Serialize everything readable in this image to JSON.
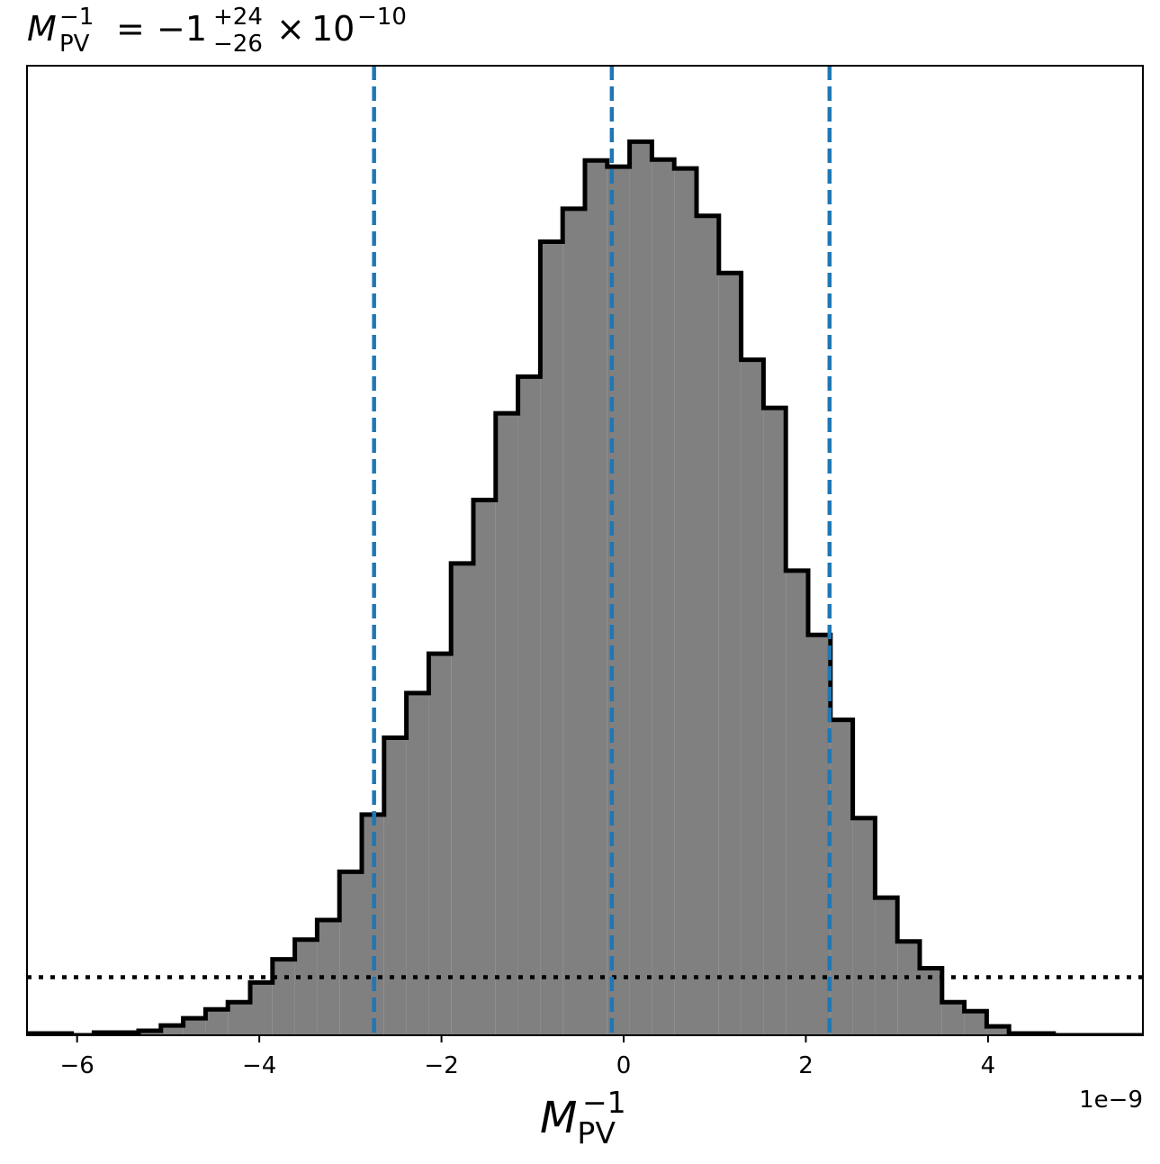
{
  "chart_data": {
    "type": "histogram",
    "title": {
      "symbol": "M",
      "sub": "PV",
      "sup": "−1",
      "equals": "=",
      "value": "−1",
      "err_plus": "+24",
      "err_minus": "−26",
      "times": "×",
      "power_base": "10",
      "power_exp": "−10"
    },
    "xlabel": {
      "symbol": "M",
      "sub": "PV",
      "sup": "−1"
    },
    "x_offset_label": "1e−9",
    "x_scale": 1e-09,
    "xlim": [
      -6.55,
      5.7
    ],
    "ylim": [
      0,
      1.085
    ],
    "xticks": [
      {
        "value": -6,
        "label": "−6"
      },
      {
        "value": -4,
        "label": "−4"
      },
      {
        "value": -2,
        "label": "−2"
      },
      {
        "value": 0,
        "label": "0"
      },
      {
        "value": 2,
        "label": "2"
      },
      {
        "value": 4,
        "label": "4"
      }
    ],
    "bin_start": -6.55,
    "bin_width": 0.245,
    "counts": [
      0.002,
      0.002,
      0.0,
      0.003,
      0.003,
      0.005,
      0.011,
      0.019,
      0.029,
      0.037,
      0.059,
      0.085,
      0.107,
      0.129,
      0.183,
      0.247,
      0.333,
      0.383,
      0.427,
      0.528,
      0.599,
      0.696,
      0.737,
      0.888,
      0.925,
      0.979,
      0.972,
      1.0,
      0.98,
      0.97,
      0.917,
      0.853,
      0.756,
      0.702,
      0.52,
      0.448,
      0.353,
      0.243,
      0.154,
      0.105,
      0.075,
      0.037,
      0.027,
      0.01,
      0.002,
      0.002,
      0.0,
      0.0,
      0.0,
      0.0
    ],
    "hist_fill": "#808080",
    "hist_edge": "#000000",
    "vlines": {
      "values": [
        -2.74,
        -0.13,
        2.26
      ],
      "color": "#1f77b4",
      "style": "dashed"
    },
    "hline": {
      "value": 0.065,
      "color": "#000000",
      "style": "dotted"
    },
    "grid": false,
    "legend": null
  }
}
